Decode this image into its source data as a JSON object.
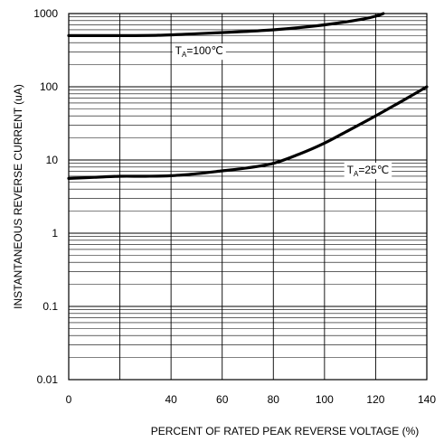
{
  "chart_data": {
    "type": "line",
    "xlabel": "PERCENT OF RATED PEAK REVERSE VOLTAGE (%)",
    "ylabel": "INSTANTANEOUS REVERSE CURRENT (uA)",
    "xlim": [
      0,
      140
    ],
    "ylim": [
      0.01,
      1000
    ],
    "yscale": "log",
    "grid": true,
    "x_ticks": [
      0,
      40,
      60,
      80,
      100,
      120,
      140
    ],
    "x_tick_labels": [
      "0",
      "40",
      "60",
      "80",
      "100",
      "120",
      "140"
    ],
    "x_grid": [
      0,
      20,
      40,
      60,
      80,
      100,
      120,
      140
    ],
    "y_ticks": [
      0.01,
      0.1,
      1,
      10,
      100,
      1000
    ],
    "y_tick_labels": [
      "0.01",
      "0.1",
      "1",
      "10",
      "100",
      "1000"
    ],
    "series": [
      {
        "label_base": "T",
        "label_sub": "A",
        "label_rest": "=100℃",
        "label_at": [
          51,
          310
        ],
        "x": [
          0,
          10,
          20,
          35,
          50,
          65,
          80,
          95,
          105,
          115,
          120,
          123
        ],
        "y": [
          500,
          500,
          500,
          505,
          530,
          560,
          600,
          670,
          740,
          840,
          920,
          1000
        ]
      },
      {
        "label_base": "T",
        "label_sub": "A",
        "label_rest": "=25℃",
        "label_at": [
          117,
          7.3
        ],
        "x": [
          0,
          10,
          20,
          30,
          40,
          50,
          60,
          70,
          80,
          90,
          100,
          110,
          120,
          130,
          140
        ],
        "y": [
          5.6,
          5.8,
          6.0,
          6.0,
          6.1,
          6.5,
          7.1,
          7.8,
          9.0,
          12,
          17,
          26,
          40,
          63,
          100
        ]
      }
    ]
  }
}
